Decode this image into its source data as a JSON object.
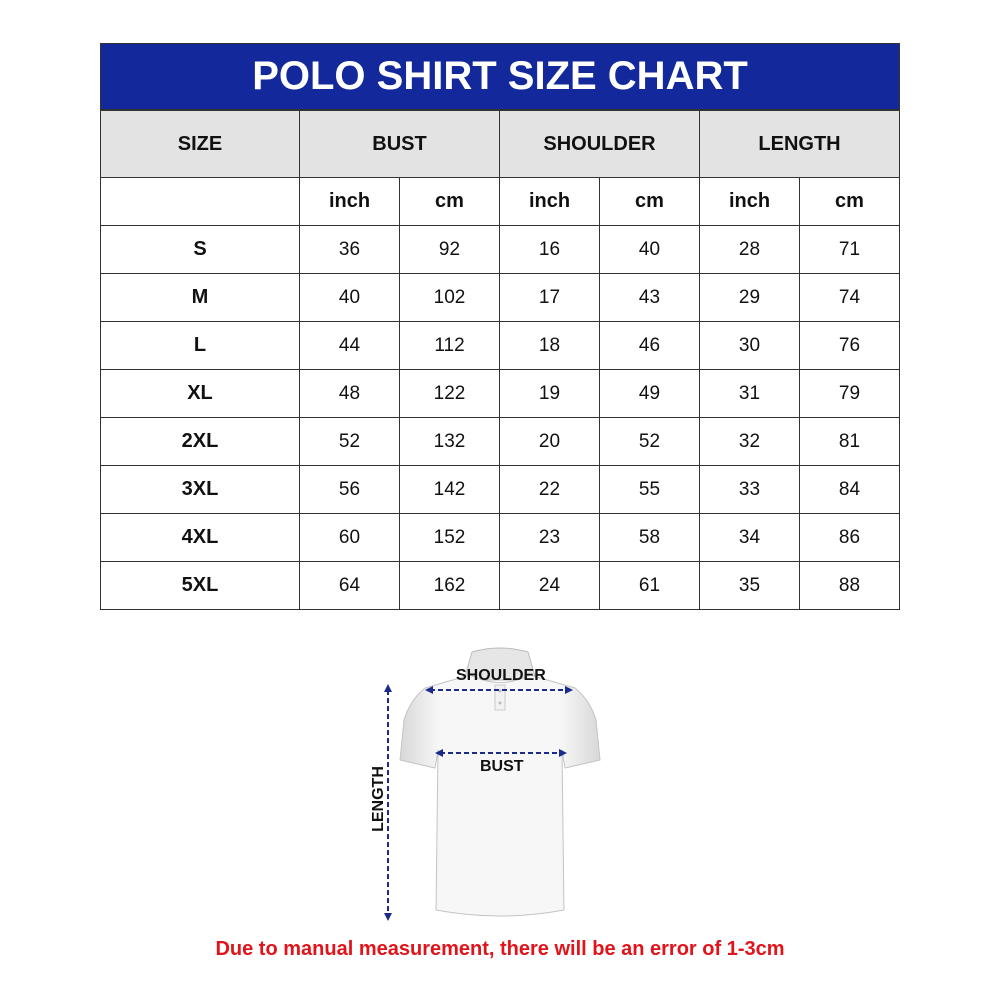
{
  "title": "POLO SHIRT SIZE CHART",
  "headers": [
    "SIZE",
    "BUST",
    "SHOULDER",
    "LENGTH"
  ],
  "units": [
    "inch",
    "cm",
    "inch",
    "cm",
    "inch",
    "cm"
  ],
  "rows": [
    [
      "S",
      "36",
      "92",
      "16",
      "40",
      "28",
      "71"
    ],
    [
      "M",
      "40",
      "102",
      "17",
      "43",
      "29",
      "74"
    ],
    [
      "L",
      "44",
      "112",
      "18",
      "46",
      "30",
      "76"
    ],
    [
      "XL",
      "48",
      "122",
      "19",
      "49",
      "31",
      "79"
    ],
    [
      "2XL",
      "52",
      "132",
      "20",
      "52",
      "32",
      "81"
    ],
    [
      "3XL",
      "56",
      "142",
      "22",
      "55",
      "33",
      "84"
    ],
    [
      "4XL",
      "60",
      "152",
      "23",
      "58",
      "34",
      "86"
    ],
    [
      "5XL",
      "64",
      "162",
      "24",
      "61",
      "35",
      "88"
    ]
  ],
  "diagram": {
    "shoulder": "SHOULDER",
    "bust": "BUST",
    "length": "LENGTH"
  },
  "note": "Due to manual measurement, there will be an error of 1-3cm",
  "colors": {
    "title_bg": "#13289b",
    "header_bg": "#e3e3e3",
    "arrow": "#1c2a8c",
    "note": "#e0141a"
  }
}
